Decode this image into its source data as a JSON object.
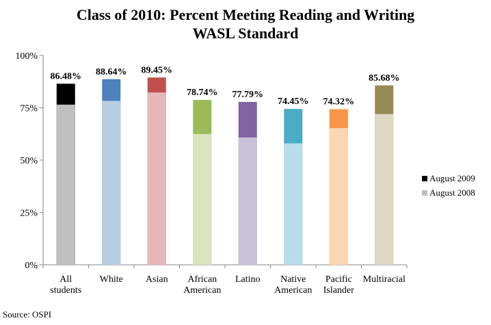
{
  "source": "Source: OSPI",
  "chart_data": {
    "type": "bar",
    "title": "Class of 2010: Percent Meeting Reading and Writing WASL Standard",
    "title_lines": [
      "Class of 2010: Percent Meeting Reading and Writing",
      "WASL Standard"
    ],
    "categories": [
      [
        "All",
        "students"
      ],
      [
        "White"
      ],
      [
        "Asian"
      ],
      [
        "African",
        "American"
      ],
      [
        "Latino"
      ],
      [
        "Native",
        "American"
      ],
      [
        "Pacific",
        "Islander"
      ],
      [
        "Multiracial"
      ]
    ],
    "series": [
      {
        "name": "August 2008",
        "values": [
          76.5,
          78.3,
          82.3,
          62.5,
          60.8,
          58.0,
          65.3,
          72.0
        ]
      },
      {
        "name": "August 2009",
        "values": [
          86.48,
          88.64,
          89.45,
          78.74,
          77.79,
          74.45,
          74.32,
          85.68
        ]
      }
    ],
    "data_labels": [
      "86.48%",
      "88.64%",
      "89.45%",
      "78.74%",
      "77.79%",
      "74.45%",
      "74.32%",
      "85.68%"
    ],
    "stacked_visual": "2009 total drawn behind 2008 bar",
    "colors_2009": [
      "#000000",
      "#4f81bd",
      "#c0504d",
      "#9bbb59",
      "#8064a2",
      "#4bacc6",
      "#f79646",
      "#948a54"
    ],
    "colors_2008": [
      "#bfbfbf",
      "#b9cde5",
      "#e6b9b8",
      "#d7e4bd",
      "#ccc1da",
      "#b7dee8",
      "#fcd5b5",
      "#ddd9c3"
    ],
    "ylim": [
      0,
      100
    ],
    "yticks": [
      "0%",
      "25%",
      "50%",
      "75%",
      "100%"
    ],
    "legend": [
      "August 2009",
      "August 2008"
    ],
    "legend_position": "right",
    "grid": false
  }
}
